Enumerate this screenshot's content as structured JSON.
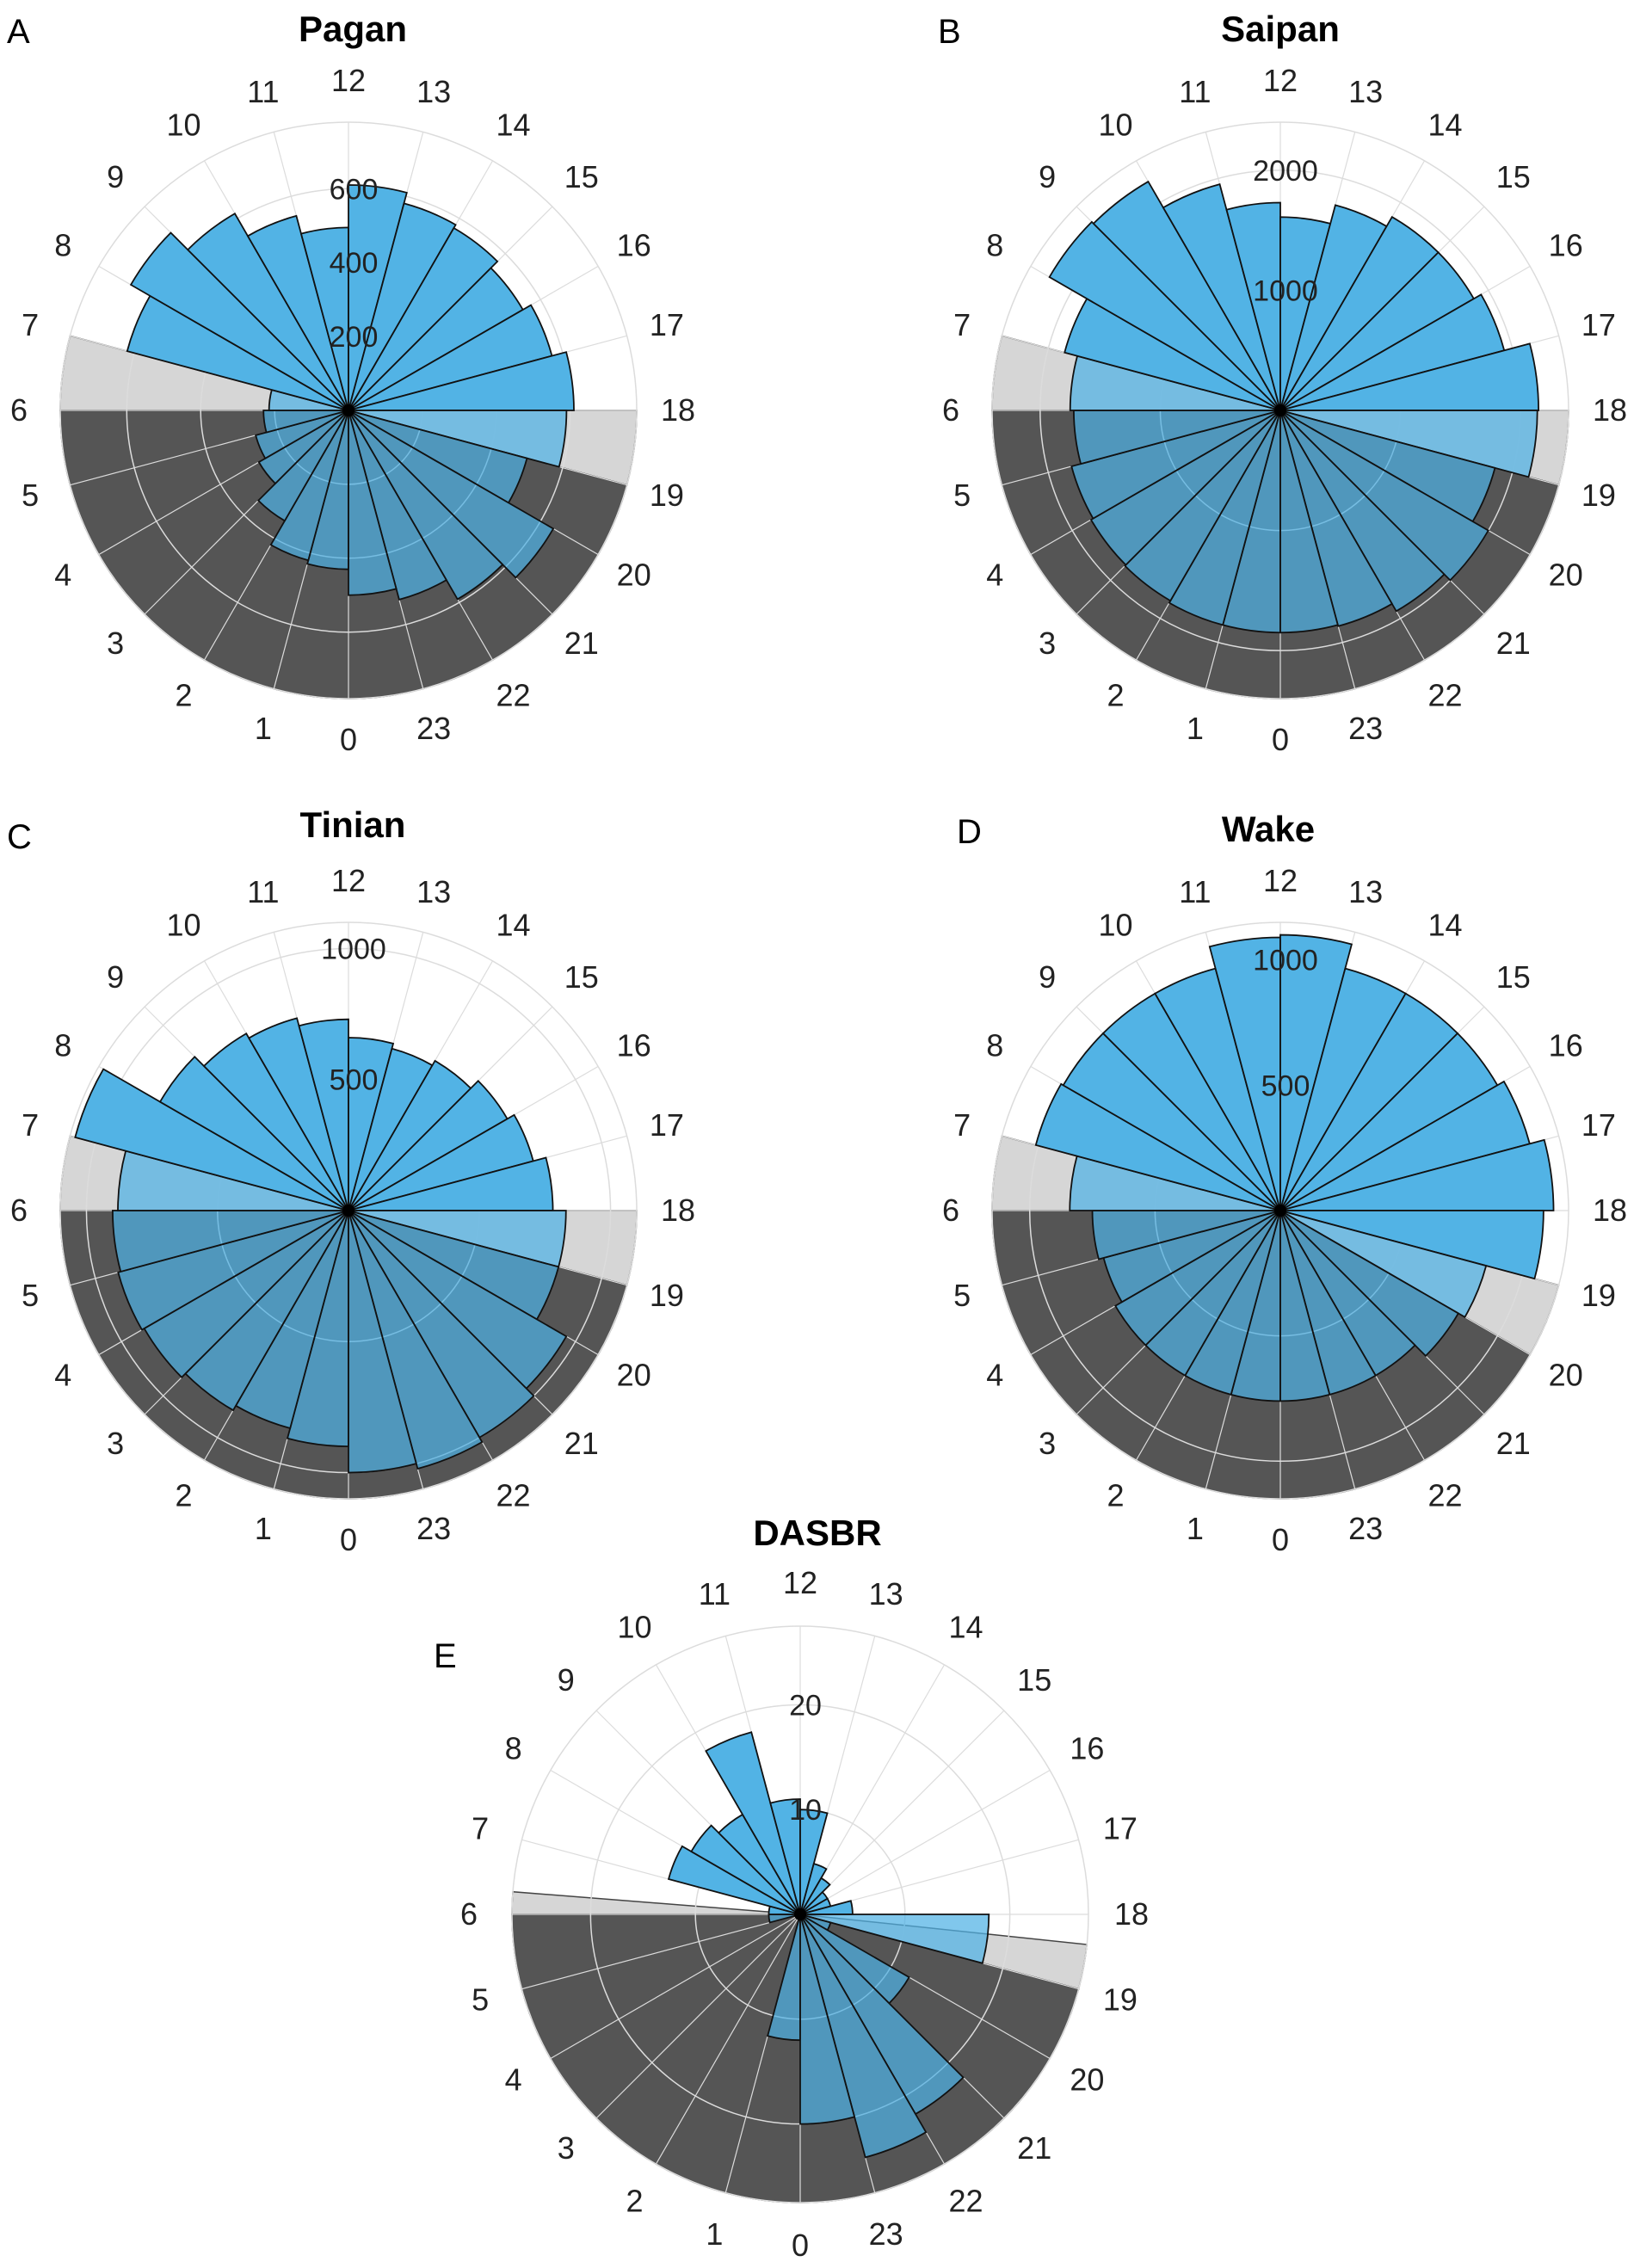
{
  "figure": {
    "colors": {
      "bar": "#4fb1e4",
      "bar_edge": "#111111",
      "night": "#555555",
      "twilight": "#d6d6d6",
      "grid": "#dcdcdc",
      "background": "#ffffff"
    }
  },
  "chart_data": [
    {
      "type": "polar-bar",
      "panel_label": "A",
      "title": "Pagan",
      "theta_direction": "clockwise",
      "theta_zero": "bottom",
      "categories": [
        "0",
        "1",
        "2",
        "3",
        "4",
        "5",
        "6",
        "7",
        "8",
        "9",
        "10",
        "11",
        "12",
        "13",
        "14",
        "15",
        "16",
        "17",
        "18",
        "19",
        "20",
        "21",
        "22",
        "23"
      ],
      "values": [
        430,
        420,
        345,
        280,
        260,
        230,
        215,
        620,
        680,
        615,
        545,
        495,
        610,
        580,
        570,
        545,
        570,
        610,
        590,
        500,
        640,
        590,
        530,
        500
      ],
      "rlim": [
        0,
        780
      ],
      "rticks": [
        200,
        400,
        600
      ],
      "night_hours": [
        [
          19,
          6
        ]
      ],
      "twilight_hours": [
        [
          6,
          7
        ],
        [
          18,
          19
        ]
      ],
      "grid": true
    },
    {
      "type": "polar-bar",
      "panel_label": "B",
      "title": "Saipan",
      "theta_direction": "clockwise",
      "theta_zero": "bottom",
      "categories": [
        "0",
        "1",
        "2",
        "3",
        "4",
        "5",
        "6",
        "7",
        "8",
        "9",
        "10",
        "11",
        "12",
        "13",
        "14",
        "15",
        "16",
        "17",
        "18",
        "19",
        "20",
        "21",
        "22",
        "23"
      ],
      "values": [
        1850,
        1850,
        1830,
        1820,
        1800,
        1720,
        1750,
        1860,
        2220,
        2200,
        1950,
        1730,
        1610,
        1770,
        1860,
        1860,
        1930,
        2150,
        2140,
        1850,
        2000,
        1930,
        1860,
        1850
      ],
      "rlim": [
        0,
        2400
      ],
      "rticks": [
        1000,
        2000
      ],
      "night_hours": [
        [
          19,
          6
        ]
      ],
      "twilight_hours": [
        [
          6,
          7
        ],
        [
          18,
          19
        ]
      ],
      "grid": true
    },
    {
      "type": "polar-bar",
      "panel_label": "C",
      "title": "Tinian",
      "theta_direction": "clockwise",
      "theta_zero": "bottom",
      "categories": [
        "0",
        "1",
        "2",
        "3",
        "4",
        "5",
        "6",
        "7",
        "8",
        "9",
        "10",
        "11",
        "12",
        "13",
        "14",
        "15",
        "16",
        "17",
        "18",
        "19",
        "20",
        "21",
        "22",
        "23"
      ],
      "values": [
        900,
        860,
        880,
        900,
        910,
        900,
        880,
        1080,
        830,
        780,
        760,
        730,
        660,
        640,
        660,
        700,
        730,
        780,
        830,
        830,
        960,
        1000,
        1020,
        1000
      ],
      "rlim": [
        0,
        1100
      ],
      "rticks": [
        500,
        1000
      ],
      "night_hours": [
        [
          19,
          6
        ]
      ],
      "twilight_hours": [
        [
          6,
          7
        ],
        [
          18,
          19
        ]
      ],
      "grid": true
    },
    {
      "type": "polar-bar",
      "panel_label": "D",
      "title": "Wake",
      "theta_direction": "clockwise",
      "theta_zero": "bottom",
      "categories": [
        "0",
        "1",
        "2",
        "3",
        "4",
        "5",
        "6",
        "7",
        "8",
        "9",
        "10",
        "11",
        "12",
        "13",
        "14",
        "15",
        "16",
        "17",
        "18",
        "19",
        "20",
        "21",
        "22",
        "23"
      ],
      "values": [
        760,
        760,
        760,
        760,
        730,
        750,
        840,
        1010,
        1000,
        1000,
        1000,
        1090,
        1100,
        1000,
        1000,
        1000,
        1030,
        1090,
        1050,
        850,
        820,
        760,
        760,
        760
      ],
      "rlim": [
        0,
        1150
      ],
      "rticks": [
        500,
        1000
      ],
      "night_hours": [
        [
          20,
          6
        ]
      ],
      "twilight_hours": [
        [
          6,
          7
        ],
        [
          19,
          20
        ]
      ],
      "grid": true
    },
    {
      "type": "polar-bar",
      "panel_label": "E",
      "title": "DASBR",
      "theta_direction": "clockwise",
      "theta_zero": "bottom",
      "categories": [
        "0",
        "1",
        "2",
        "3",
        "4",
        "5",
        "6",
        "7",
        "8",
        "9",
        "10",
        "11",
        "12",
        "13",
        "14",
        "15",
        "16",
        "17",
        "18",
        "19",
        "20",
        "21",
        "22",
        "23"
      ],
      "values": [
        12,
        0,
        0,
        0,
        0,
        3,
        3,
        13,
        12,
        11,
        18,
        11,
        10,
        5,
        4,
        3,
        3,
        5,
        18,
        3,
        12,
        22,
        24,
        20
      ],
      "rlim": [
        0,
        27.5
      ],
      "rticks": [
        10,
        20
      ],
      "night_hours": [
        [
          19,
          6
        ]
      ],
      "twilight_hours": [
        [
          6,
          6.3
        ],
        [
          18.4,
          19
        ]
      ],
      "grid": true
    }
  ]
}
